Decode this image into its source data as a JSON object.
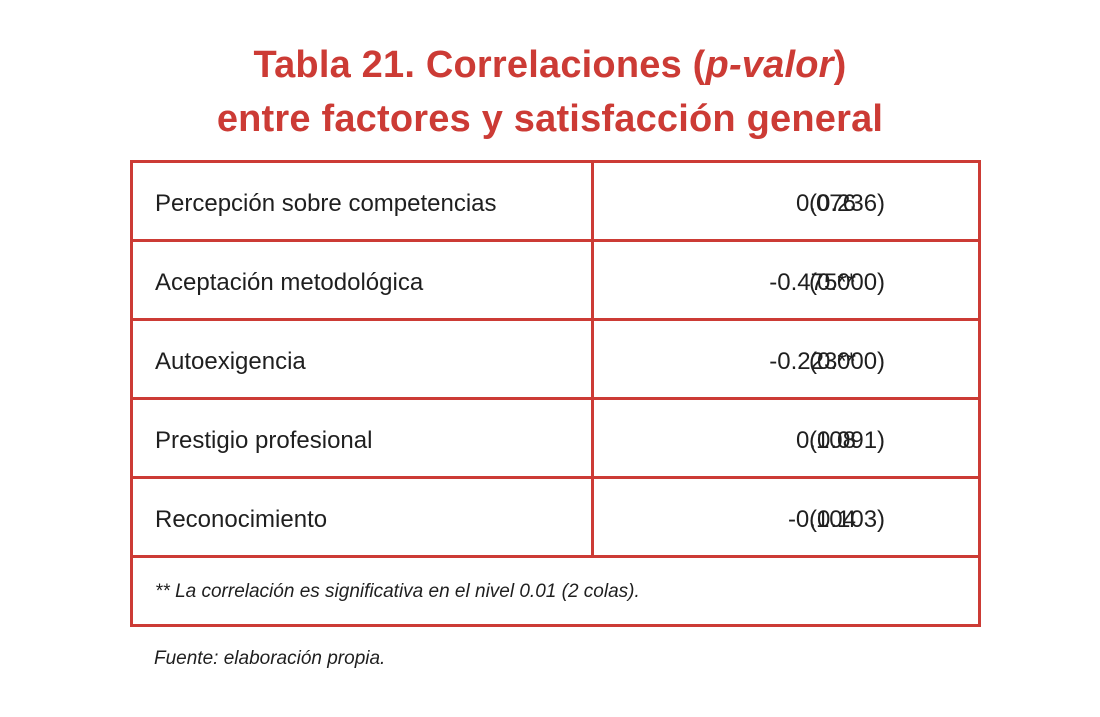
{
  "title": {
    "prefix": "Tabla 21. Correlaciones (",
    "italic": "p-valor",
    "suffix": ")",
    "line2": "entre factores y satisfacción general"
  },
  "rows": [
    {
      "label": "Percepción sobre competencias",
      "coef": "0.076",
      "pvalue": "(0.236)"
    },
    {
      "label": "Aceptación metodológica",
      "coef": "-0.475**",
      "pvalue": "(0.000)"
    },
    {
      "label": "Autoexigencia",
      "coef": "-0.223**",
      "pvalue": "(0.000)"
    },
    {
      "label": "Prestigio profesional",
      "coef": "0.108",
      "pvalue": "(0.091)"
    },
    {
      "label": "Reconocimiento",
      "coef": "-0.104",
      "pvalue": "(0.103)"
    }
  ],
  "note": "** La correlación es significativa en el nivel 0.01 (2 colas).",
  "source": "Fuente: elaboración propia.",
  "colors": {
    "accent": "#cc3b35",
    "text": "#1f1f1f"
  }
}
